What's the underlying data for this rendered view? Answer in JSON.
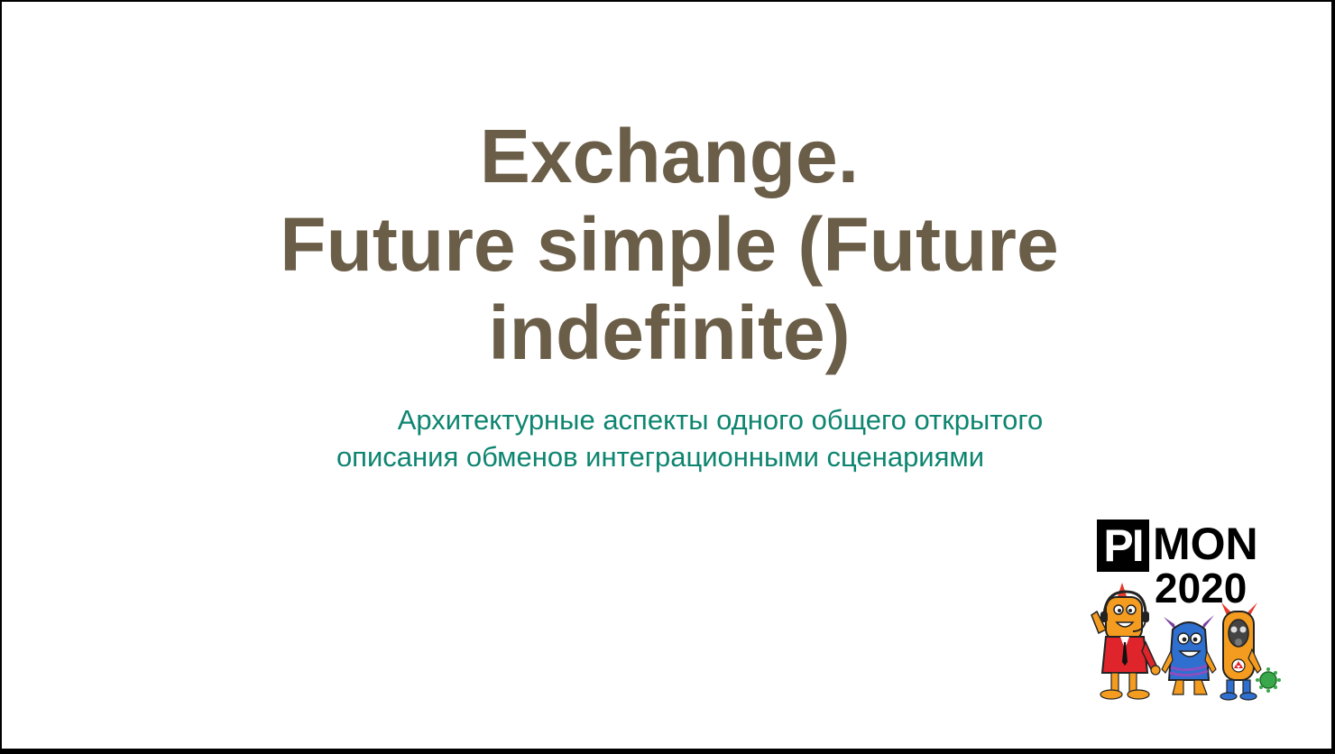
{
  "slide": {
    "title_lines": [
      "Exchange.",
      "Future simple (Future",
      "indefinite)"
    ],
    "subtitle_lines": [
      "Архитектурные аспекты одного общего открытого",
      "описания обменов интеграционными сценариями"
    ]
  },
  "logo": {
    "pi": "PI",
    "mon": "MON",
    "year": "2020",
    "mascots": [
      "orange-monster-with-headset",
      "blue-monster",
      "orange-monster-with-gas-mask"
    ]
  },
  "colors": {
    "title": "#6b5e48",
    "subtitle": "#0e8570",
    "background": "#ffffff",
    "frame": "#000000"
  }
}
